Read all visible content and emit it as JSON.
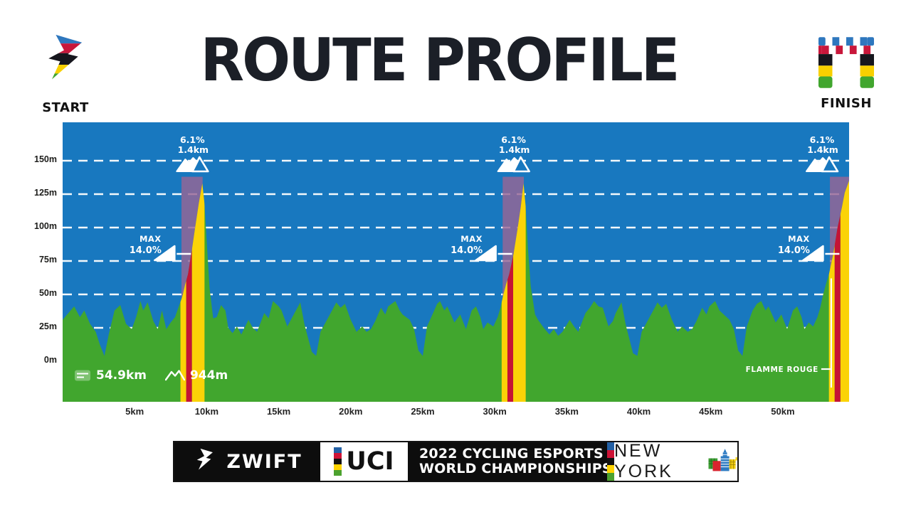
{
  "page": {
    "title": "ROUTE PROFILE",
    "start_label": "START",
    "finish_label": "FINISH"
  },
  "chart_data": {
    "type": "area",
    "title": "ROUTE PROFILE",
    "xlim": [
      0,
      54.6
    ],
    "ylim": [
      -30,
      179
    ],
    "grid": "dashed-white-horizontal",
    "gridlines_m": [
      25,
      50,
      75,
      100,
      125,
      150
    ],
    "y_ticks": [
      {
        "label": "150m",
        "m": 150
      },
      {
        "label": "125m",
        "m": 125
      },
      {
        "label": "100m",
        "m": 100
      },
      {
        "label": "75m",
        "m": 75
      },
      {
        "label": "50m",
        "m": 50
      },
      {
        "label": "25m",
        "m": 25
      },
      {
        "label": "0m",
        "m": 0
      }
    ],
    "x_ticks": [
      {
        "label": "5km",
        "km": 5
      },
      {
        "label": "10km",
        "km": 10
      },
      {
        "label": "15km",
        "km": 15
      },
      {
        "label": "20km",
        "km": 20
      },
      {
        "label": "25km",
        "km": 25
      },
      {
        "label": "30km",
        "km": 30
      },
      {
        "label": "35km",
        "km": 35
      },
      {
        "label": "40km",
        "km": 40
      },
      {
        "label": "45km",
        "km": 45
      },
      {
        "label": "50km",
        "km": 50
      }
    ],
    "profile": [
      [
        0,
        31
      ],
      [
        0.4,
        36
      ],
      [
        0.8,
        41
      ],
      [
        1.0,
        37
      ],
      [
        1.2,
        33
      ],
      [
        1.5,
        38
      ],
      [
        1.9,
        28
      ],
      [
        2.3,
        22
      ],
      [
        2.6,
        12
      ],
      [
        2.9,
        4
      ],
      [
        3.2,
        20
      ],
      [
        3.6,
        38
      ],
      [
        4.0,
        42
      ],
      [
        4.4,
        28
      ],
      [
        4.8,
        24
      ],
      [
        5.1,
        33
      ],
      [
        5.4,
        45
      ],
      [
        5.6,
        38
      ],
      [
        5.9,
        44
      ],
      [
        6.3,
        30
      ],
      [
        6.6,
        24
      ],
      [
        6.9,
        38
      ],
      [
        7.2,
        24
      ],
      [
        7.5,
        29
      ],
      [
        7.8,
        33
      ],
      [
        8.1,
        42
      ],
      [
        8.3,
        48
      ],
      [
        8.5,
        57
      ],
      [
        8.7,
        65
      ],
      [
        9.0,
        85
      ],
      [
        9.2,
        100
      ],
      [
        9.45,
        118
      ],
      [
        9.7,
        133
      ],
      [
        9.85,
        118
      ],
      [
        10.0,
        90
      ],
      [
        10.2,
        55
      ],
      [
        10.45,
        32
      ],
      [
        10.7,
        33
      ],
      [
        11.0,
        42
      ],
      [
        11.3,
        38
      ],
      [
        11.5,
        25
      ],
      [
        11.8,
        21
      ],
      [
        12.1,
        26
      ],
      [
        12.4,
        20
      ],
      [
        12.9,
        31
      ],
      [
        13.2,
        25
      ],
      [
        13.5,
        22
      ],
      [
        14.0,
        36
      ],
      [
        14.3,
        32
      ],
      [
        14.6,
        45
      ],
      [
        15.0,
        41
      ],
      [
        15.2,
        38
      ],
      [
        15.6,
        26
      ],
      [
        16.1,
        36
      ],
      [
        16.5,
        44
      ],
      [
        16.8,
        27
      ],
      [
        17.3,
        7
      ],
      [
        17.6,
        4
      ],
      [
        17.9,
        22
      ],
      [
        18.3,
        30
      ],
      [
        18.7,
        38
      ],
      [
        19.0,
        44
      ],
      [
        19.3,
        40
      ],
      [
        19.6,
        43
      ],
      [
        20.0,
        31
      ],
      [
        20.4,
        22
      ],
      [
        20.8,
        26
      ],
      [
        21.1,
        22
      ],
      [
        21.4,
        24
      ],
      [
        21.7,
        30
      ],
      [
        22.1,
        40
      ],
      [
        22.4,
        35
      ],
      [
        22.6,
        41
      ],
      [
        23.1,
        45
      ],
      [
        23.4,
        38
      ],
      [
        23.6,
        35
      ],
      [
        24.1,
        31
      ],
      [
        24.4,
        24
      ],
      [
        24.7,
        8
      ],
      [
        25.0,
        4
      ],
      [
        25.3,
        26
      ],
      [
        25.8,
        38
      ],
      [
        26.0,
        43
      ],
      [
        26.2,
        45
      ],
      [
        26.5,
        38
      ],
      [
        26.7,
        41
      ],
      [
        27.2,
        29
      ],
      [
        27.6,
        35
      ],
      [
        28.0,
        24
      ],
      [
        28.4,
        38
      ],
      [
        28.7,
        41
      ],
      [
        29.0,
        33
      ],
      [
        29.2,
        24
      ],
      [
        29.5,
        29
      ],
      [
        29.9,
        26
      ],
      [
        30.2,
        33
      ],
      [
        30.4,
        40
      ],
      [
        30.6,
        50
      ],
      [
        30.8,
        58
      ],
      [
        31.0,
        65
      ],
      [
        31.3,
        80
      ],
      [
        31.6,
        100
      ],
      [
        31.8,
        115
      ],
      [
        32.0,
        133
      ],
      [
        32.15,
        115
      ],
      [
        32.3,
        85
      ],
      [
        32.5,
        56
      ],
      [
        32.8,
        35
      ],
      [
        33.0,
        31
      ],
      [
        33.4,
        25
      ],
      [
        33.8,
        20
      ],
      [
        34.1,
        24
      ],
      [
        34.4,
        19
      ],
      [
        34.7,
        22
      ],
      [
        35.2,
        31
      ],
      [
        35.5,
        26
      ],
      [
        35.8,
        22
      ],
      [
        36.3,
        36
      ],
      [
        36.6,
        40
      ],
      [
        36.9,
        45
      ],
      [
        37.2,
        41
      ],
      [
        37.5,
        40
      ],
      [
        37.9,
        26
      ],
      [
        38.2,
        30
      ],
      [
        38.4,
        36
      ],
      [
        38.8,
        44
      ],
      [
        39.1,
        27
      ],
      [
        39.6,
        6
      ],
      [
        39.9,
        4
      ],
      [
        40.2,
        22
      ],
      [
        40.6,
        30
      ],
      [
        41.0,
        38
      ],
      [
        41.3,
        44
      ],
      [
        41.6,
        40
      ],
      [
        41.9,
        43
      ],
      [
        42.3,
        31
      ],
      [
        42.7,
        22
      ],
      [
        43.0,
        26
      ],
      [
        43.4,
        22
      ],
      [
        43.7,
        24
      ],
      [
        44.0,
        30
      ],
      [
        44.4,
        40
      ],
      [
        44.7,
        35
      ],
      [
        44.9,
        41
      ],
      [
        45.3,
        45
      ],
      [
        45.6,
        38
      ],
      [
        45.9,
        35
      ],
      [
        46.3,
        31
      ],
      [
        46.6,
        24
      ],
      [
        46.9,
        8
      ],
      [
        47.2,
        4
      ],
      [
        47.5,
        26
      ],
      [
        47.9,
        38
      ],
      [
        48.2,
        43
      ],
      [
        48.5,
        45
      ],
      [
        48.8,
        38
      ],
      [
        49.0,
        41
      ],
      [
        49.5,
        29
      ],
      [
        49.9,
        35
      ],
      [
        50.3,
        24
      ],
      [
        50.7,
        38
      ],
      [
        51.0,
        41
      ],
      [
        51.3,
        33
      ],
      [
        51.5,
        24
      ],
      [
        51.8,
        29
      ],
      [
        52.1,
        26
      ],
      [
        52.4,
        33
      ],
      [
        52.6,
        40
      ],
      [
        52.8,
        50
      ],
      [
        53.0,
        58
      ],
      [
        53.2,
        65
      ],
      [
        53.5,
        80
      ],
      [
        53.8,
        100
      ],
      [
        54.1,
        115
      ],
      [
        54.3,
        126
      ],
      [
        54.6,
        135
      ]
    ],
    "climbs": [
      {
        "summit_km": 9.7,
        "grade": "6.1%",
        "length": "1.4km",
        "max_label": "MAX",
        "max_value": "14.0%"
      },
      {
        "summit_km": 32.0,
        "grade": "6.1%",
        "length": "1.4km",
        "max_label": "MAX",
        "max_value": "14.0%"
      },
      {
        "summit_km": 54.72,
        "grade": "6.1%",
        "length": "1.4km",
        "max_label": "MAX",
        "max_value": "14.0%"
      }
    ],
    "kom_band_top_m": 138,
    "flamme_rouge": {
      "label": "FLAMME ROUGE",
      "km": 53.36
    },
    "stats": {
      "distance": "54.9km",
      "elevation": "944m"
    },
    "colors": {
      "sky": "#1878BF",
      "terrain": "#41A62E",
      "climb_band": "#976595",
      "kom_yellow": "#FBD307",
      "kom_red": "#C51335",
      "gridline": "#FFFFFF",
      "annotation": "#FFFFFF"
    }
  },
  "footer": {
    "zwift_label": "ZWIFT",
    "uci_label": "UCI",
    "championship_line1": "2022 CYCLING ESPORTS",
    "championship_line2": "WORLD CHAMPIONSHIPS",
    "city": "NEW YORK",
    "rainbow": [
      "#2360A5",
      "#CE1336",
      "#121212",
      "#FFD400",
      "#4CA22F"
    ]
  }
}
